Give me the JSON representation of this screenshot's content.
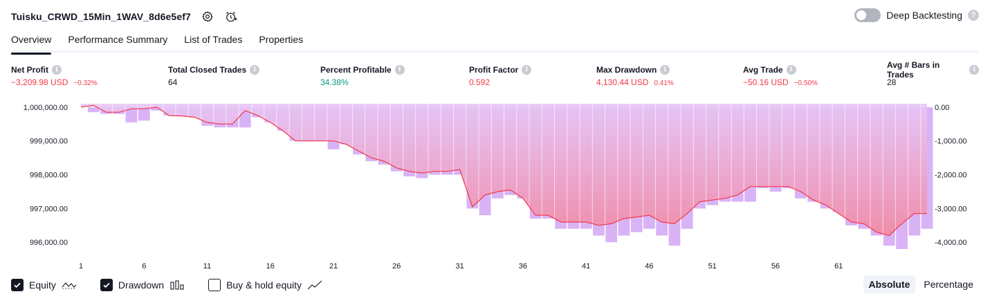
{
  "header": {
    "title": "Tuisku_CRWD_15Min_1WAV_8d6e5ef7",
    "deep_backtesting_label": "Deep Backtesting",
    "deep_backtesting_on": false
  },
  "tabs": [
    {
      "label": "Overview",
      "active": true
    },
    {
      "label": "Performance Summary",
      "active": false
    },
    {
      "label": "List of Trades",
      "active": false
    },
    {
      "label": "Properties",
      "active": false
    }
  ],
  "metrics": [
    {
      "label": "Net Profit",
      "value": "−3,209.98 USD",
      "sub": "−0.32%",
      "color": "#f23645"
    },
    {
      "label": "Total Closed Trades",
      "value": "64",
      "sub": "",
      "color": "#131722"
    },
    {
      "label": "Percent Profitable",
      "value": "34.38%",
      "sub": "",
      "color": "#089981"
    },
    {
      "label": "Profit Factor",
      "value": "0.592",
      "sub": "",
      "color": "#f23645"
    },
    {
      "label": "Max Drawdown",
      "value": "4,130.44 USD",
      "sub": "0.41%",
      "color": "#f23645"
    },
    {
      "label": "Avg Trade",
      "value": "−50.16 USD",
      "sub": "−0.50%",
      "color": "#f23645"
    },
    {
      "label": "Avg # Bars in Trades",
      "value": "28",
      "sub": "",
      "color": "#131722"
    }
  ],
  "chart_data": {
    "type": "line",
    "x_ticks": [
      "1",
      "6",
      "11",
      "16",
      "21",
      "26",
      "31",
      "36",
      "41",
      "46",
      "51",
      "56",
      "61"
    ],
    "left_axis_ticks": [
      "1,000,000.00",
      "999,000.00",
      "998,000.00",
      "997,000.00",
      "996,000.00"
    ],
    "right_axis_ticks": [
      "0.00",
      "-1,000.00",
      "-2,000.00",
      "-3,000.00",
      "-4,000.00"
    ],
    "left_ylim": [
      995800,
      1000100
    ],
    "right_ylim": [
      -4200,
      100
    ],
    "series": [
      {
        "name": "Equity",
        "color": "#f23645",
        "values": [
          1000000,
          1000050,
          999850,
          999850,
          999950,
          999950,
          1000000,
          999750,
          999740,
          999700,
          999550,
          999500,
          999500,
          999900,
          999750,
          999550,
          999300,
          999000,
          999000,
          999000,
          999000,
          998900,
          998700,
          998500,
          998400,
          998200,
          998100,
          998050,
          998100,
          998100,
          998150,
          997050,
          997400,
          997500,
          997550,
          997300,
          996800,
          996800,
          996600,
          996600,
          996600,
          996500,
          996550,
          996700,
          996750,
          996800,
          996600,
          996550,
          996850,
          997200,
          997250,
          997300,
          997400,
          997650,
          997650,
          997650,
          997650,
          997500,
          997250,
          997100,
          996850,
          996600,
          996550,
          996300,
          996200,
          996550,
          996850,
          996850
        ]
      },
      {
        "name": "Drawdown",
        "color": "#d9b3f5",
        "values": [
          0,
          -150,
          -200,
          -200,
          -450,
          -400,
          -100,
          -250,
          -250,
          -300,
          -550,
          -600,
          -600,
          -600,
          -300,
          -450,
          -700,
          -1000,
          -1000,
          -1000,
          -1250,
          -1100,
          -1400,
          -1600,
          -1700,
          -1900,
          -2050,
          -2100,
          -2000,
          -2000,
          -2000,
          -3000,
          -3200,
          -2700,
          -2600,
          -2700,
          -3300,
          -3300,
          -3600,
          -3600,
          -3600,
          -3800,
          -4000,
          -3800,
          -3700,
          -3600,
          -3800,
          -4100,
          -3600,
          -3000,
          -2900,
          -2800,
          -2800,
          -2800,
          -2400,
          -2500,
          -2400,
          -2700,
          -2800,
          -3000,
          -3100,
          -3500,
          -3600,
          -3800,
          -4100,
          -4200,
          -3800,
          -3600
        ]
      }
    ],
    "legend": [
      "Equity",
      "Drawdown",
      "Buy & hold equity"
    ],
    "grid": false
  },
  "footer": {
    "equity_label": "Equity",
    "equity_checked": true,
    "drawdown_label": "Drawdown",
    "drawdown_checked": true,
    "buyhold_label": "Buy & hold equity",
    "buyhold_checked": false,
    "mode_absolute": "Absolute",
    "mode_percentage": "Percentage",
    "mode_active": "Absolute"
  }
}
